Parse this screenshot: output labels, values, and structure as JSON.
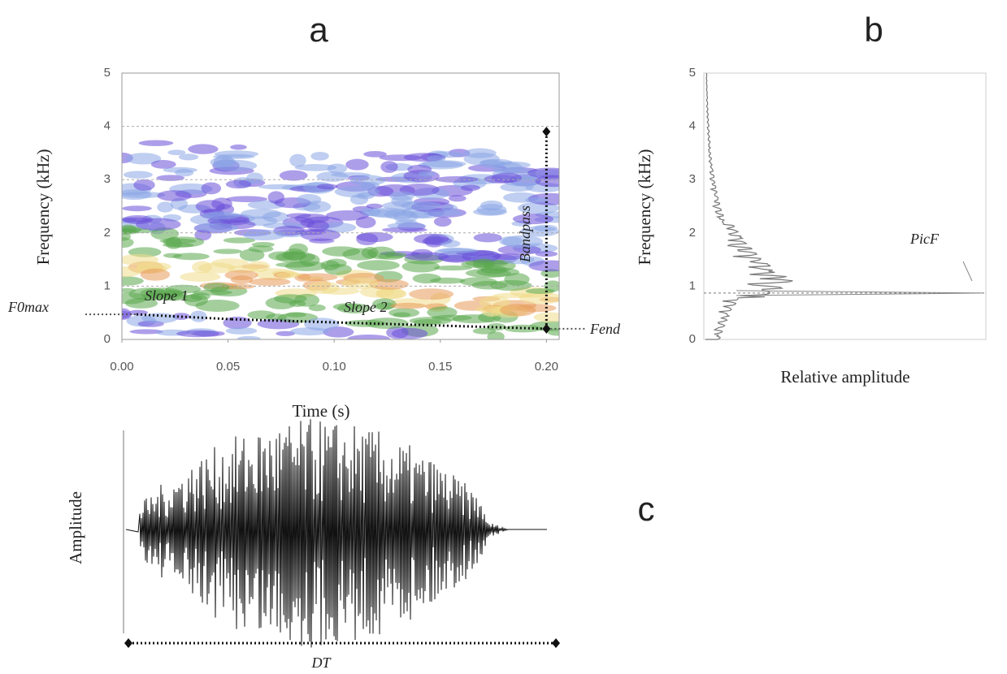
{
  "panel_labels": [
    "a",
    "b",
    "c"
  ],
  "chart_data": [
    {
      "type": "spectrogram",
      "ylabel": "Frequency (kHz)",
      "xlabel": "Time (s)",
      "xlim": [
        0,
        0.206
      ],
      "ylim": [
        0,
        5
      ],
      "xticks": [
        {
          "value": 0,
          "label": "0.00"
        },
        {
          "value": 0.05,
          "label": "0.05"
        },
        {
          "value": 0.1,
          "label": "0.10"
        },
        {
          "value": 0.15,
          "label": "0.15"
        },
        {
          "value": 0.2,
          "label": "0.20"
        }
      ],
      "yticks": [
        0,
        1,
        2,
        3,
        4,
        5
      ],
      "annotations": {
        "f0max": {
          "label": "F0max",
          "value": 0.47
        },
        "slope1": {
          "label": "Slope 1"
        },
        "slope2": {
          "label": "Slope 2"
        },
        "fend": {
          "label": "Fend",
          "value": 0.2
        },
        "bandpass": {
          "label": "Bandpass",
          "time": 0.2,
          "values": [
            0.2,
            3.9
          ]
        }
      }
    },
    {
      "type": "spectrum",
      "ylabel": "Frequency (kHz)",
      "xlabel": "Relative amplitude",
      "ylim": [
        0,
        5
      ],
      "yticks": [
        0,
        1,
        2,
        3,
        4,
        5
      ],
      "annotations": {
        "picf": {
          "label": "PicF",
          "value": 0.87
        }
      }
    },
    {
      "type": "waveform",
      "ylabel": "Amplitude",
      "annotations": {
        "dt": {
          "label": "DT"
        }
      }
    }
  ]
}
